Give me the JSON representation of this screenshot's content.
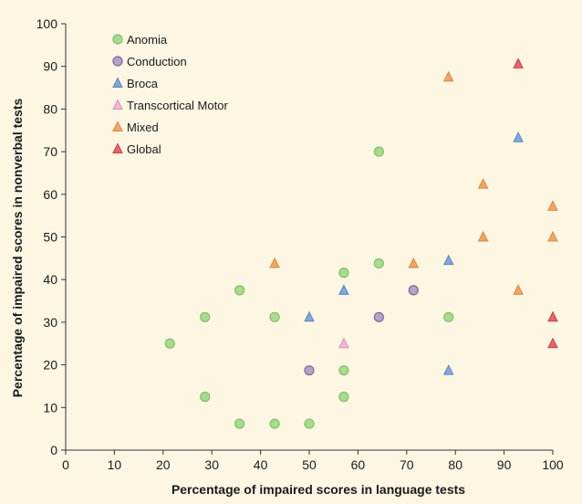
{
  "chart_data": {
    "type": "scatter",
    "xlabel": "Percentage of impaired scores in  language tests",
    "ylabel": "Percentage of impaired scores in nonverbal tests",
    "xlim": [
      0,
      100
    ],
    "ylim": [
      0,
      100
    ],
    "x_ticks": [
      "0",
      "10",
      "20",
      "30",
      "40",
      "50",
      "60",
      "70",
      "80",
      "90",
      "100"
    ],
    "y_ticks": [
      "0",
      "10",
      "20",
      "30",
      "40",
      "50",
      "60",
      "70",
      "80",
      "90",
      "100"
    ],
    "grid": false,
    "legend_position": "top-left",
    "series": [
      {
        "name": "Anomia",
        "marker": "circle",
        "color": "#a8dc8c",
        "edge": "#7fbf6a",
        "points": [
          [
            21.4,
            25
          ],
          [
            28.6,
            31.2
          ],
          [
            28.6,
            12.5
          ],
          [
            35.7,
            37.5
          ],
          [
            35.7,
            6.2
          ],
          [
            42.9,
            31.2
          ],
          [
            42.9,
            6.2
          ],
          [
            50,
            6.2
          ],
          [
            57.1,
            41.6
          ],
          [
            57.1,
            18.7
          ],
          [
            57.1,
            12.5
          ],
          [
            64.3,
            70
          ],
          [
            64.3,
            43.8
          ],
          [
            78.6,
            31.2
          ]
        ]
      },
      {
        "name": "Conduction",
        "marker": "circle",
        "color": "#b3a2c9",
        "edge": "#7c6a94",
        "points": [
          [
            50,
            18.7
          ],
          [
            64.3,
            31.2
          ],
          [
            71.4,
            37.5
          ]
        ]
      },
      {
        "name": "Broca",
        "marker": "triangle",
        "color": "#7fa8dc",
        "edge": "#5a86c0",
        "points": [
          [
            50,
            31.2
          ],
          [
            57.1,
            37.5
          ],
          [
            78.6,
            44.5
          ],
          [
            78.6,
            18.7
          ],
          [
            92.9,
            73.3
          ]
        ]
      },
      {
        "name": "Transcortical Motor",
        "marker": "triangle",
        "color": "#f2b8d8",
        "edge": "#d98fb9",
        "points": [
          [
            57.1,
            25
          ]
        ]
      },
      {
        "name": "Mixed",
        "marker": "triangle",
        "color": "#f4a460",
        "edge": "#d98840",
        "points": [
          [
            42.9,
            43.8
          ],
          [
            71.4,
            43.8
          ],
          [
            78.6,
            87.5
          ],
          [
            85.7,
            62.4
          ],
          [
            85.7,
            50
          ],
          [
            92.9,
            37.5
          ],
          [
            100,
            57.2
          ],
          [
            100,
            50
          ]
        ]
      },
      {
        "name": "Global",
        "marker": "triangle",
        "color": "#e8636a",
        "edge": "#c84048",
        "points": [
          [
            92.9,
            90.6
          ],
          [
            100,
            31.2
          ],
          [
            100,
            25
          ]
        ]
      }
    ]
  }
}
